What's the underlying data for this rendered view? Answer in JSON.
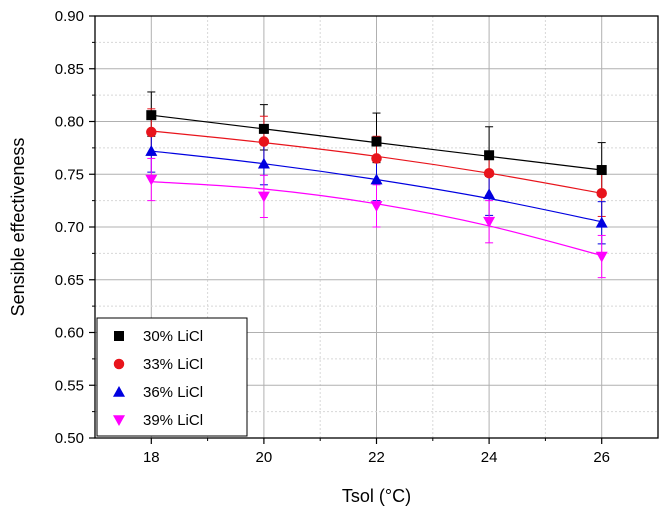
{
  "chart_data": {
    "type": "scatter",
    "title": "",
    "xlabel": "Tsol (°C)",
    "ylabel": "Sensible effectiveness",
    "xlim": [
      17,
      27
    ],
    "ylim": [
      0.5,
      0.9
    ],
    "xticks": [
      "18",
      "20",
      "22",
      "24",
      "26"
    ],
    "yticks": [
      "0.50",
      "0.55",
      "0.60",
      "0.65",
      "0.70",
      "0.75",
      "0.80",
      "0.85",
      "0.90"
    ],
    "grid": true,
    "legend_position": "bottom-left",
    "x": [
      18,
      20,
      22,
      24,
      26
    ],
    "series": [
      {
        "name": "30% LiCl",
        "marker": "square",
        "color": "#000000",
        "values": [
          0.806,
          0.793,
          0.781,
          0.768,
          0.754
        ],
        "error_low": [
          0.02,
          0.02,
          0.02,
          0.02,
          0.02
        ],
        "error_high": [
          0.022,
          0.023,
          0.027,
          0.027,
          0.026
        ],
        "fit": [
          0.806,
          0.793,
          0.78,
          0.767,
          0.754
        ]
      },
      {
        "name": "33% LiCl",
        "marker": "circle",
        "color": "#e8141c",
        "values": [
          0.79,
          0.781,
          0.765,
          0.751,
          0.732
        ],
        "error_low": [
          0.022,
          0.022,
          0.021,
          0.021,
          0.022
        ],
        "error_high": [
          0.022,
          0.024,
          0.021,
          0.021,
          0.022
        ],
        "fit": [
          0.791,
          0.78,
          0.767,
          0.751,
          0.732
        ]
      },
      {
        "name": "36% LiCl",
        "marker": "triangle-up",
        "color": "#0000e0",
        "values": [
          0.772,
          0.76,
          0.745,
          0.731,
          0.704
        ],
        "error_low": [
          0.02,
          0.02,
          0.02,
          0.02,
          0.02
        ],
        "error_high": [
          0.02,
          0.02,
          0.02,
          0.02,
          0.02
        ],
        "fit": [
          0.772,
          0.76,
          0.745,
          0.727,
          0.705
        ]
      },
      {
        "name": "39% LiCl",
        "marker": "triangle-down",
        "color": "#ff00ff",
        "values": [
          0.745,
          0.729,
          0.72,
          0.705,
          0.672
        ],
        "error_low": [
          0.02,
          0.02,
          0.02,
          0.02,
          0.02
        ],
        "error_high": [
          0.02,
          0.02,
          0.02,
          0.02,
          0.02
        ],
        "fit": [
          0.743,
          0.736,
          0.722,
          0.701,
          0.673
        ]
      }
    ]
  }
}
